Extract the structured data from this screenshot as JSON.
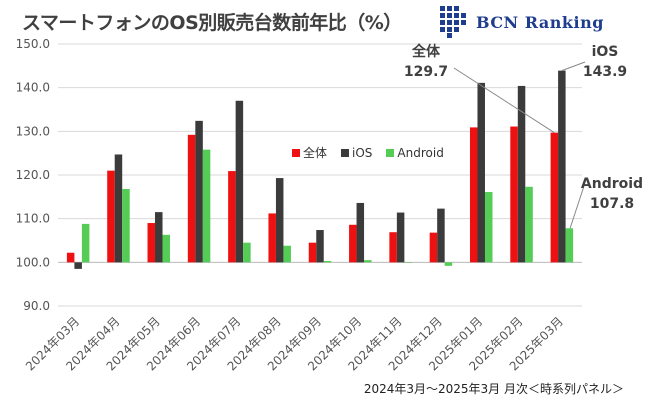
{
  "header": {
    "title": "スマートフォンのOS別販売台数前年比（%）",
    "logo_text": "BCN Ranking"
  },
  "footer": {
    "note": "2024年3月～2025年3月 月次＜時系列パネル＞"
  },
  "annotations": {
    "all": {
      "name": "全体",
      "value": "129.7"
    },
    "ios": {
      "name": "iOS",
      "value": "143.9"
    },
    "android": {
      "name": "Android",
      "value": "107.8"
    }
  },
  "chart_data": {
    "type": "bar",
    "title": "スマートフォンのOS別販売台数前年比（%）",
    "categories": [
      "2024年03月",
      "2024年04月",
      "2024年05月",
      "2024年06月",
      "2024年07月",
      "2024年08月",
      "2024年09月",
      "2024年10月",
      "2024年11月",
      "2024年12月",
      "2025年01月",
      "2025年02月",
      "2025年03月"
    ],
    "series": [
      {
        "name": "全体",
        "color": "#ee1111",
        "values": [
          102.2,
          121.0,
          109.0,
          129.2,
          120.9,
          111.2,
          104.5,
          108.6,
          106.9,
          106.8,
          130.9,
          131.1,
          129.7
        ]
      },
      {
        "name": "iOS",
        "color": "#3b3b3b",
        "values": [
          98.5,
          124.7,
          111.5,
          132.4,
          137.0,
          119.3,
          107.4,
          113.6,
          111.4,
          112.3,
          141.1,
          140.4,
          143.9
        ]
      },
      {
        "name": "Android",
        "color": "#55cc55",
        "values": [
          108.8,
          116.8,
          106.3,
          125.8,
          104.5,
          103.8,
          100.3,
          100.5,
          100.0,
          99.2,
          116.1,
          117.3,
          107.8
        ]
      }
    ],
    "baseline": 100,
    "ylim": [
      90,
      150
    ],
    "yticks": [
      "90.0",
      "100.0",
      "110.0",
      "120.0",
      "130.0",
      "140.0",
      "150.0"
    ],
    "legend": "center",
    "grid": true
  }
}
